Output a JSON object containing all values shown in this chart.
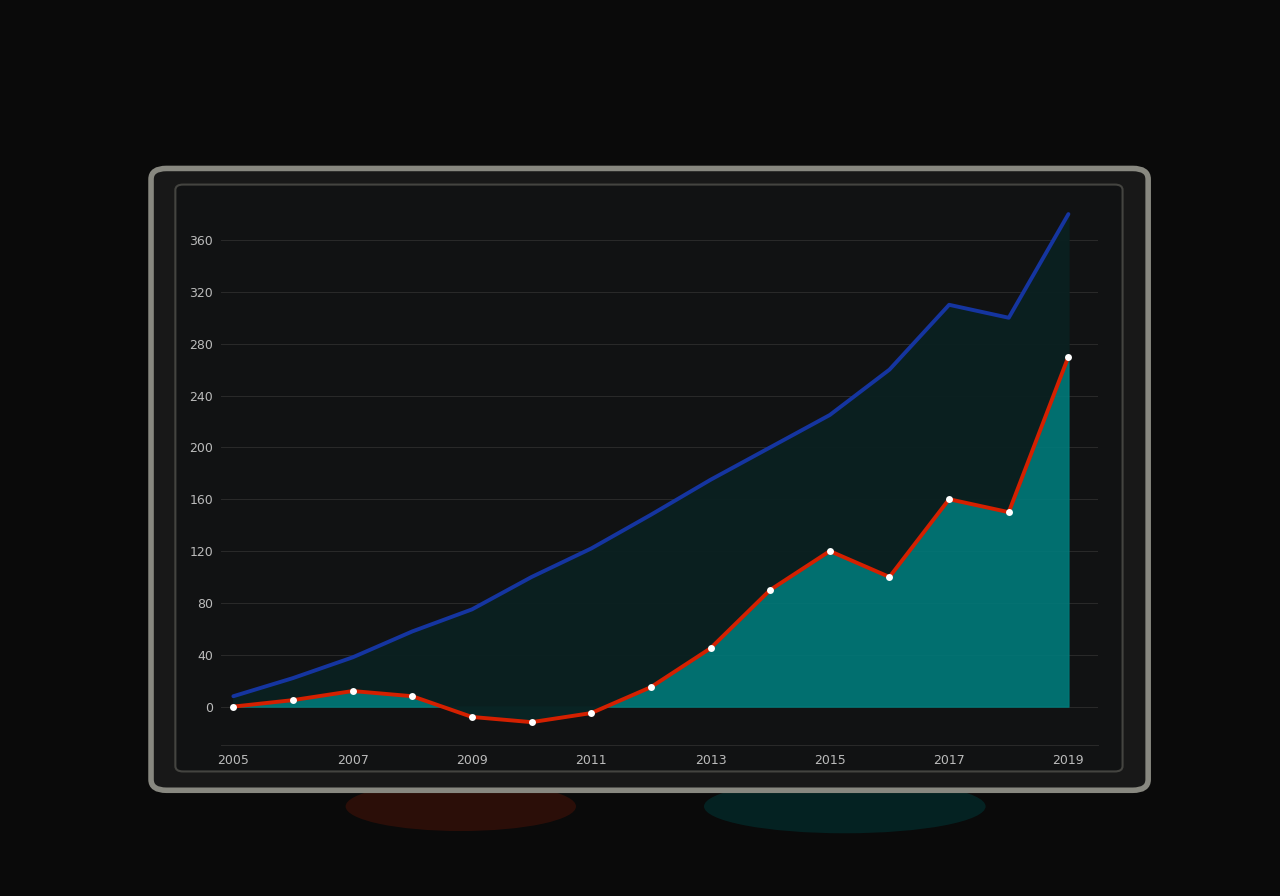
{
  "x_years": [
    2005,
    2006,
    2007,
    2008,
    2009,
    2010,
    2011,
    2012,
    2013,
    2014,
    2015,
    2016,
    2017,
    2018,
    2019
  ],
  "blue_line": [
    8,
    22,
    38,
    58,
    75,
    100,
    122,
    148,
    175,
    200,
    225,
    260,
    310,
    300,
    380
  ],
  "red_line": [
    0,
    5,
    12,
    8,
    -8,
    -12,
    -5,
    15,
    45,
    90,
    120,
    100,
    160,
    150,
    270
  ],
  "x_ticks": [
    2005,
    2007,
    2009,
    2011,
    2013,
    2015,
    2017,
    2019
  ],
  "x_tick_labels": [
    "2005",
    "2007",
    "2009",
    "2011",
    "2013",
    "2015",
    "2017",
    "2019"
  ],
  "y_ticks": [
    0,
    40,
    80,
    120,
    160,
    200,
    240,
    280,
    320,
    360
  ],
  "y_tick_labels": [
    "0",
    "40",
    "80",
    "120",
    "160",
    "200",
    "240",
    "280",
    "320",
    "360"
  ],
  "ylim": [
    -30,
    400
  ],
  "xlim": [
    2004.8,
    2019.5
  ],
  "outer_bg": "#0a0a0a",
  "plot_bg": "#111213",
  "blue_color": "#1535a0",
  "red_color": "#d42000",
  "teal_color": "#007a7a",
  "dark_fill": "#0a2020",
  "marker_color": "#ffffff",
  "grid_color": "#2a2a2a",
  "text_color": "#bbbbbb",
  "bezel_outer": "#888880",
  "bezel_inner": "#444440",
  "monitor_body": "#181818",
  "screen_border": "#303030",
  "reflect_color": "#004444"
}
